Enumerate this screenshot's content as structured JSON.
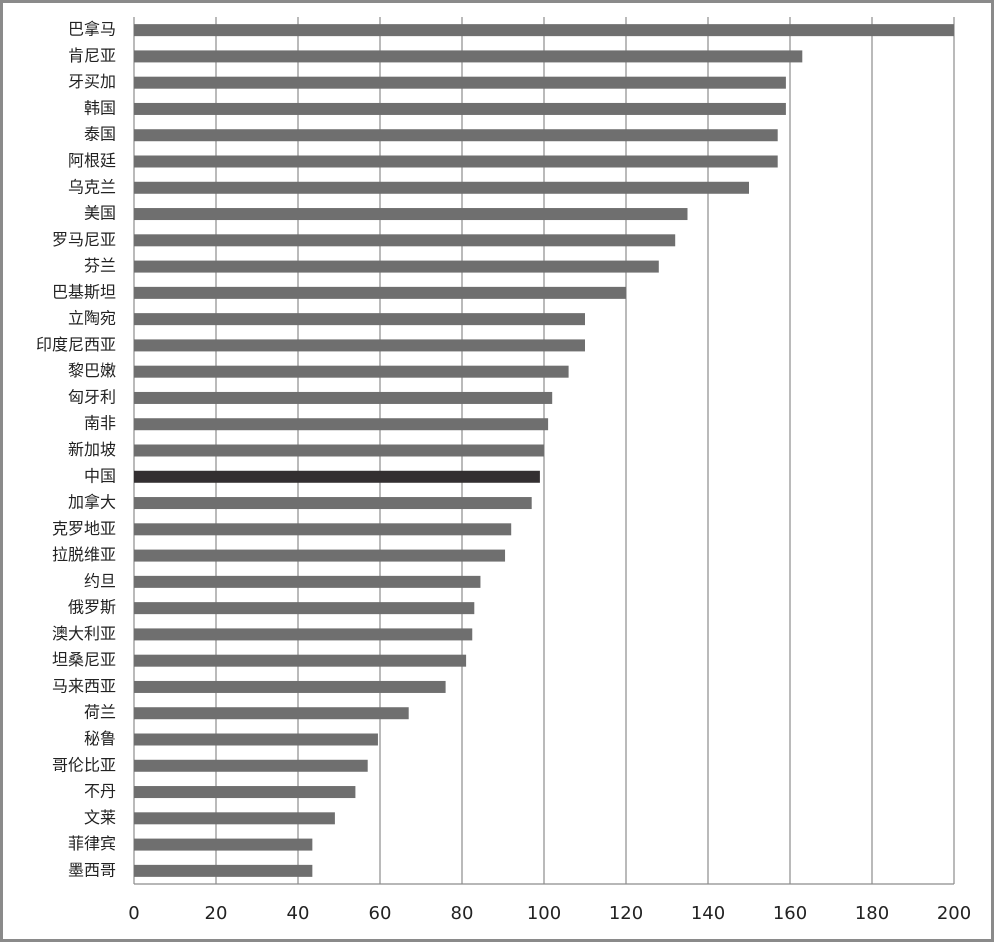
{
  "chart_data": {
    "type": "bar",
    "orientation": "horizontal",
    "categories": [
      "巴拿马",
      "肯尼亚",
      "牙买加",
      "韩国",
      "泰国",
      "阿根廷",
      "乌克兰",
      "美国",
      "罗马尼亚",
      "芬兰",
      "巴基斯坦",
      "立陶宛",
      "印度尼西亚",
      "黎巴嫩",
      "匈牙利",
      "南非",
      "新加坡",
      "中国",
      "加拿大",
      "克罗地亚",
      "拉脱维亚",
      "约旦",
      "俄罗斯",
      "澳大利亚",
      "坦桑尼亚",
      "马来西亚",
      "荷兰",
      "秘鲁",
      "哥伦比亚",
      "不丹",
      "文莱",
      "菲律宾",
      "墨西哥"
    ],
    "values": [
      200,
      163,
      159,
      159,
      157,
      157,
      150,
      135,
      132,
      128,
      120,
      110,
      110,
      106,
      102,
      101,
      100,
      99,
      97,
      92,
      90.5,
      84.5,
      83,
      82.5,
      81,
      76,
      67,
      59.5,
      57,
      54,
      49,
      43.5,
      43.5
    ],
    "color": "#6f6f6f",
    "highlight_index": 17,
    "highlight_color": "#332f31",
    "xlim": [
      0,
      200
    ],
    "xticks": [
      0,
      20,
      40,
      60,
      80,
      100,
      120,
      140,
      160,
      180,
      200
    ],
    "grid": true
  }
}
